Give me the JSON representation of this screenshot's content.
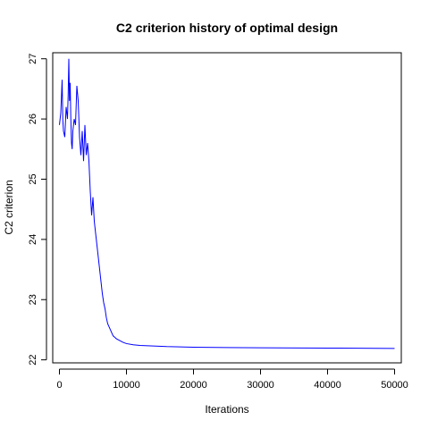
{
  "chart_data": {
    "type": "line",
    "title": "C2 criterion history of optimal design",
    "xlabel": "Iterations",
    "ylabel": "C2 criterion",
    "xlim": [
      -1000,
      51000
    ],
    "ylim": [
      21.95,
      27.1
    ],
    "x_ticks": [
      0,
      10000,
      20000,
      30000,
      40000,
      50000
    ],
    "x_tick_labels": [
      "0",
      "10000",
      "20000",
      "30000",
      "40000",
      "50000"
    ],
    "y_ticks": [
      22,
      23,
      24,
      25,
      26,
      27
    ],
    "y_tick_labels": [
      "22",
      "23",
      "24",
      "25",
      "26",
      "27"
    ],
    "grid": false,
    "legend": "none",
    "series": [
      {
        "color": "#0000ff",
        "x": [
          0,
          200,
          400,
          500,
          600,
          800,
          1000,
          1200,
          1300,
          1400,
          1500,
          1600,
          1700,
          1800,
          1900,
          2000,
          2200,
          2400,
          2600,
          2800,
          3000,
          3200,
          3400,
          3600,
          3800,
          4000,
          4200,
          4400,
          4600,
          4800,
          5000,
          5200,
          5400,
          5600,
          5800,
          6000,
          6200,
          6400,
          6600,
          6800,
          7000,
          7200,
          7400,
          7600,
          7800,
          8000,
          8500,
          9000,
          9500,
          10000,
          11000,
          12000,
          14000,
          16000,
          20000,
          25000,
          30000,
          40000,
          50000
        ],
        "y": [
          25.9,
          26.1,
          26.65,
          26.0,
          25.8,
          25.7,
          26.2,
          26.0,
          26.4,
          27.0,
          26.3,
          26.6,
          26.0,
          25.6,
          25.5,
          25.8,
          26.0,
          25.9,
          26.55,
          26.3,
          25.7,
          25.4,
          25.8,
          25.3,
          25.9,
          25.4,
          25.6,
          25.3,
          24.8,
          24.4,
          24.7,
          24.3,
          24.1,
          23.9,
          23.7,
          23.5,
          23.3,
          23.1,
          22.95,
          22.85,
          22.7,
          22.6,
          22.55,
          22.5,
          22.45,
          22.4,
          22.35,
          22.32,
          22.29,
          22.27,
          22.25,
          22.24,
          22.23,
          22.22,
          22.21,
          22.205,
          22.2,
          22.195,
          22.19
        ]
      }
    ]
  }
}
